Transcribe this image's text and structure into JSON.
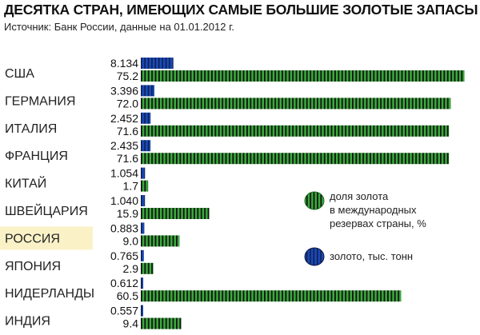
{
  "chart_data": {
    "type": "bar",
    "title": "ДЕСЯТКА СТРАН, ИМЕЮЩИХ САМЫЕ БОЛЬШИЕ ЗОЛОТЫЕ ЗАПАСЫ",
    "subtitle": "Источник: Банк России, данные на 01.01.2012 г.",
    "categories": [
      "США",
      "ГЕРМАНИЯ",
      "ИТАЛИЯ",
      "ФРАНЦИЯ",
      "КИТАЙ",
      "ШВЕЙЦАРИЯ",
      "РОССИЯ",
      "ЯПОНИЯ",
      "НИДЕРЛАНДЫ",
      "ИНДИЯ"
    ],
    "highlight": "РОССИЯ",
    "series": [
      {
        "name": "золото, тыс. тонн",
        "labels": [
          "8.134",
          "3.396",
          "2.452",
          "2.435",
          "1.054",
          "1.040",
          "0.883",
          "0.765",
          "0.612",
          "0.557"
        ],
        "values": [
          8.134,
          3.396,
          2.452,
          2.435,
          1.054,
          1.04,
          0.883,
          0.765,
          0.612,
          0.557
        ],
        "color": "#1a49b5"
      },
      {
        "name": "доля золота в международных резервах страны, %",
        "labels": [
          "75.2",
          "72.0",
          "71.6",
          "71.6",
          "1.7",
          "15.9",
          "9.0",
          "2.9",
          "60.5",
          "9.4"
        ],
        "values": [
          75.2,
          72.0,
          71.6,
          71.6,
          1.7,
          15.9,
          9.0,
          2.9,
          60.5,
          9.4
        ],
        "color": "#3aaa3c"
      }
    ],
    "legend": {
      "position": "right",
      "share": [
        "доля золота",
        "в международных",
        "резервах страны, %"
      ],
      "gold": "золото, тыс. тонн"
    },
    "colors": {
      "stripe": "#111111",
      "highlight_bg": "#fbf1c7"
    }
  }
}
